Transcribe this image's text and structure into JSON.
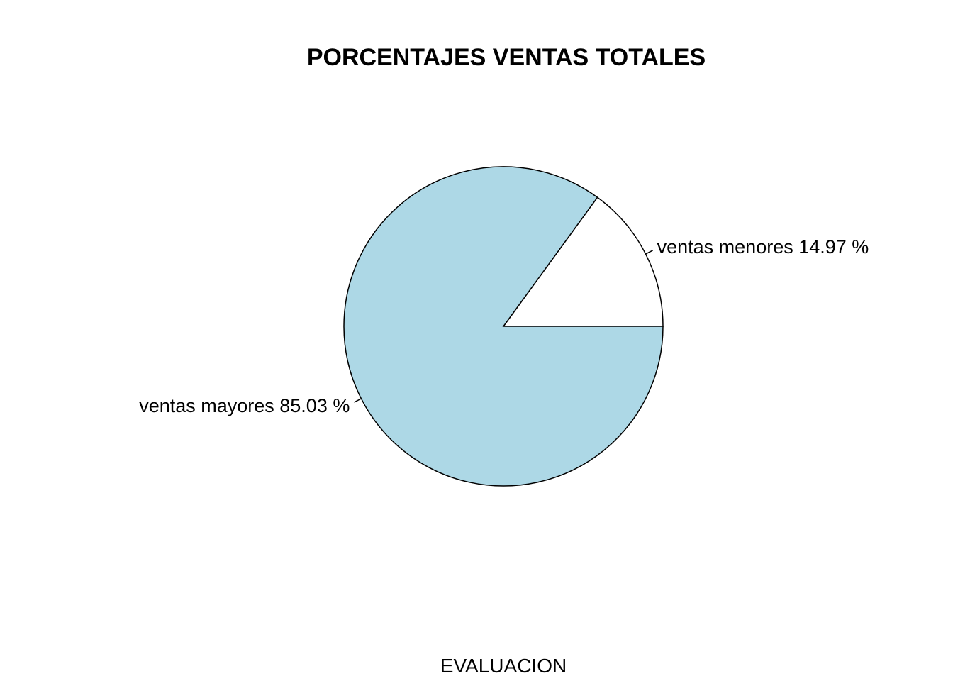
{
  "chart_data": {
    "type": "pie",
    "title": "PORCENTAJES VENTAS TOTALES",
    "xlabel": "EVALUACION",
    "slices": [
      {
        "label": "ventas menores 14.97 %",
        "value": 14.97,
        "color": "#ffffff"
      },
      {
        "label": "ventas mayores 85.03 %",
        "value": 85.03,
        "color": "#add8e6"
      }
    ],
    "start_angle": 0,
    "direction": "counterclockwise"
  }
}
